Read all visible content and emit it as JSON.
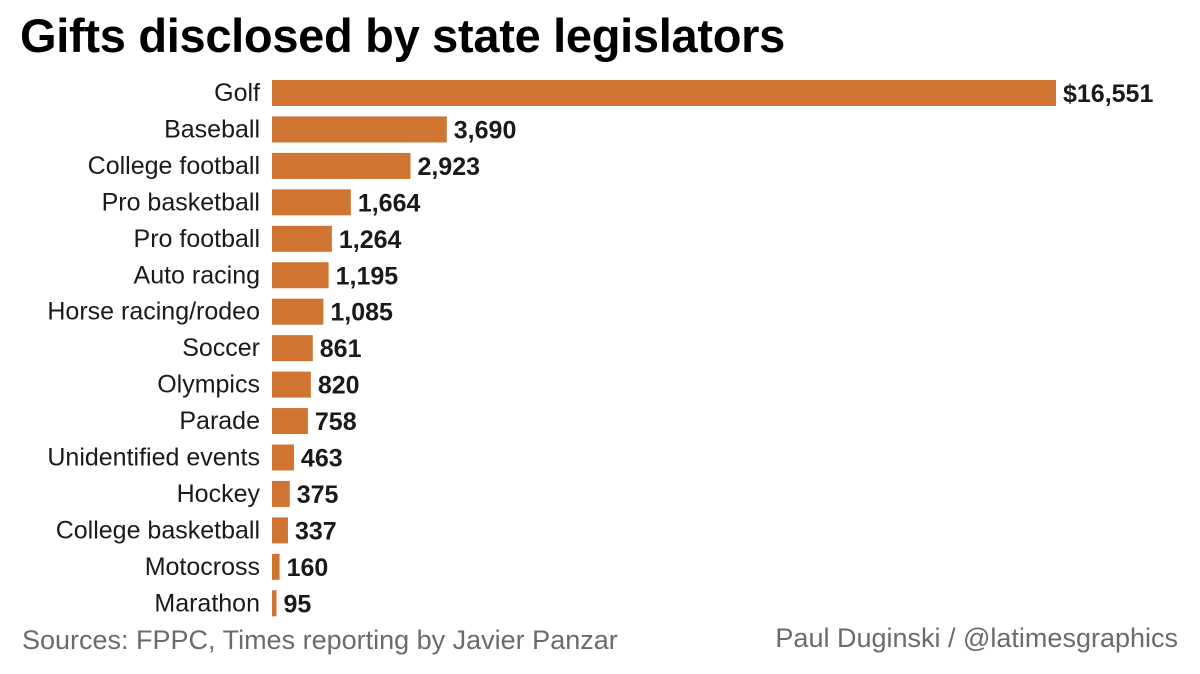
{
  "chart_data": {
    "type": "bar",
    "orientation": "horizontal",
    "title": "Gifts disclosed by state legislators",
    "categories": [
      "Golf",
      "Baseball",
      "College football",
      "Pro basketball",
      "Pro football",
      "Auto racing",
      "Horse racing/rodeo",
      "Soccer",
      "Olympics",
      "Parade",
      "Unidentified events",
      "Hockey",
      "College basketball",
      "Motocross",
      "Marathon"
    ],
    "values": [
      16551,
      3690,
      2923,
      1664,
      1264,
      1195,
      1085,
      861,
      820,
      758,
      463,
      375,
      337,
      160,
      95
    ],
    "value_labels": [
      "$16,551",
      "3,690",
      "2,923",
      "1,664",
      "1,264",
      "1,195",
      "1,085",
      "861",
      "820",
      "758",
      "463",
      "375",
      "337",
      "160",
      "95"
    ],
    "xlabel": "",
    "ylabel": "",
    "xlim": [
      0,
      16551
    ],
    "grid": false,
    "legend": "none",
    "bar_color": "#d07432"
  },
  "footer": {
    "sources": "Sources: FPPC, Times reporting by Javier Panzar",
    "credit": "Paul Duginski / @latimesgraphics"
  }
}
